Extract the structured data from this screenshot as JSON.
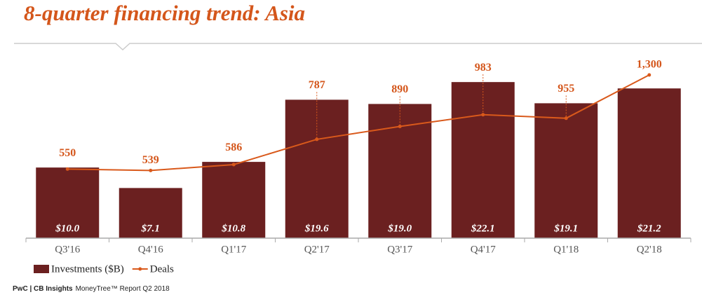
{
  "title": "8-quarter financing trend: Asia",
  "footer": {
    "source": "PwC | CB Insights",
    "report": "MoneyTree™ Report Q2 2018"
  },
  "chart_data": {
    "type": "combo",
    "categories": [
      "Q3'16",
      "Q4'16",
      "Q1'17",
      "Q2'17",
      "Q3'17",
      "Q4'17",
      "Q1'18",
      "Q2'18"
    ],
    "series": [
      {
        "name": "Investments ($B)",
        "type": "bar",
        "color": "#6b2020",
        "values": [
          10.0,
          7.1,
          10.8,
          19.6,
          19.0,
          22.1,
          19.1,
          21.2
        ],
        "value_labels": [
          "$10.0",
          "$7.1",
          "$10.8",
          "$19.6",
          "$19.0",
          "$22.1",
          "$19.1",
          "$21.2"
        ]
      },
      {
        "name": "Deals",
        "type": "line",
        "axis": "y2",
        "color": "#d9591b",
        "values": [
          550,
          539,
          586,
          787,
          890,
          983,
          955,
          1300
        ],
        "value_labels": [
          "550",
          "539",
          "586",
          "787",
          "890",
          "983",
          "955",
          "1,300"
        ]
      }
    ],
    "ylim": [
      0,
      24
    ],
    "y2lim": [
      0,
      1350
    ]
  }
}
